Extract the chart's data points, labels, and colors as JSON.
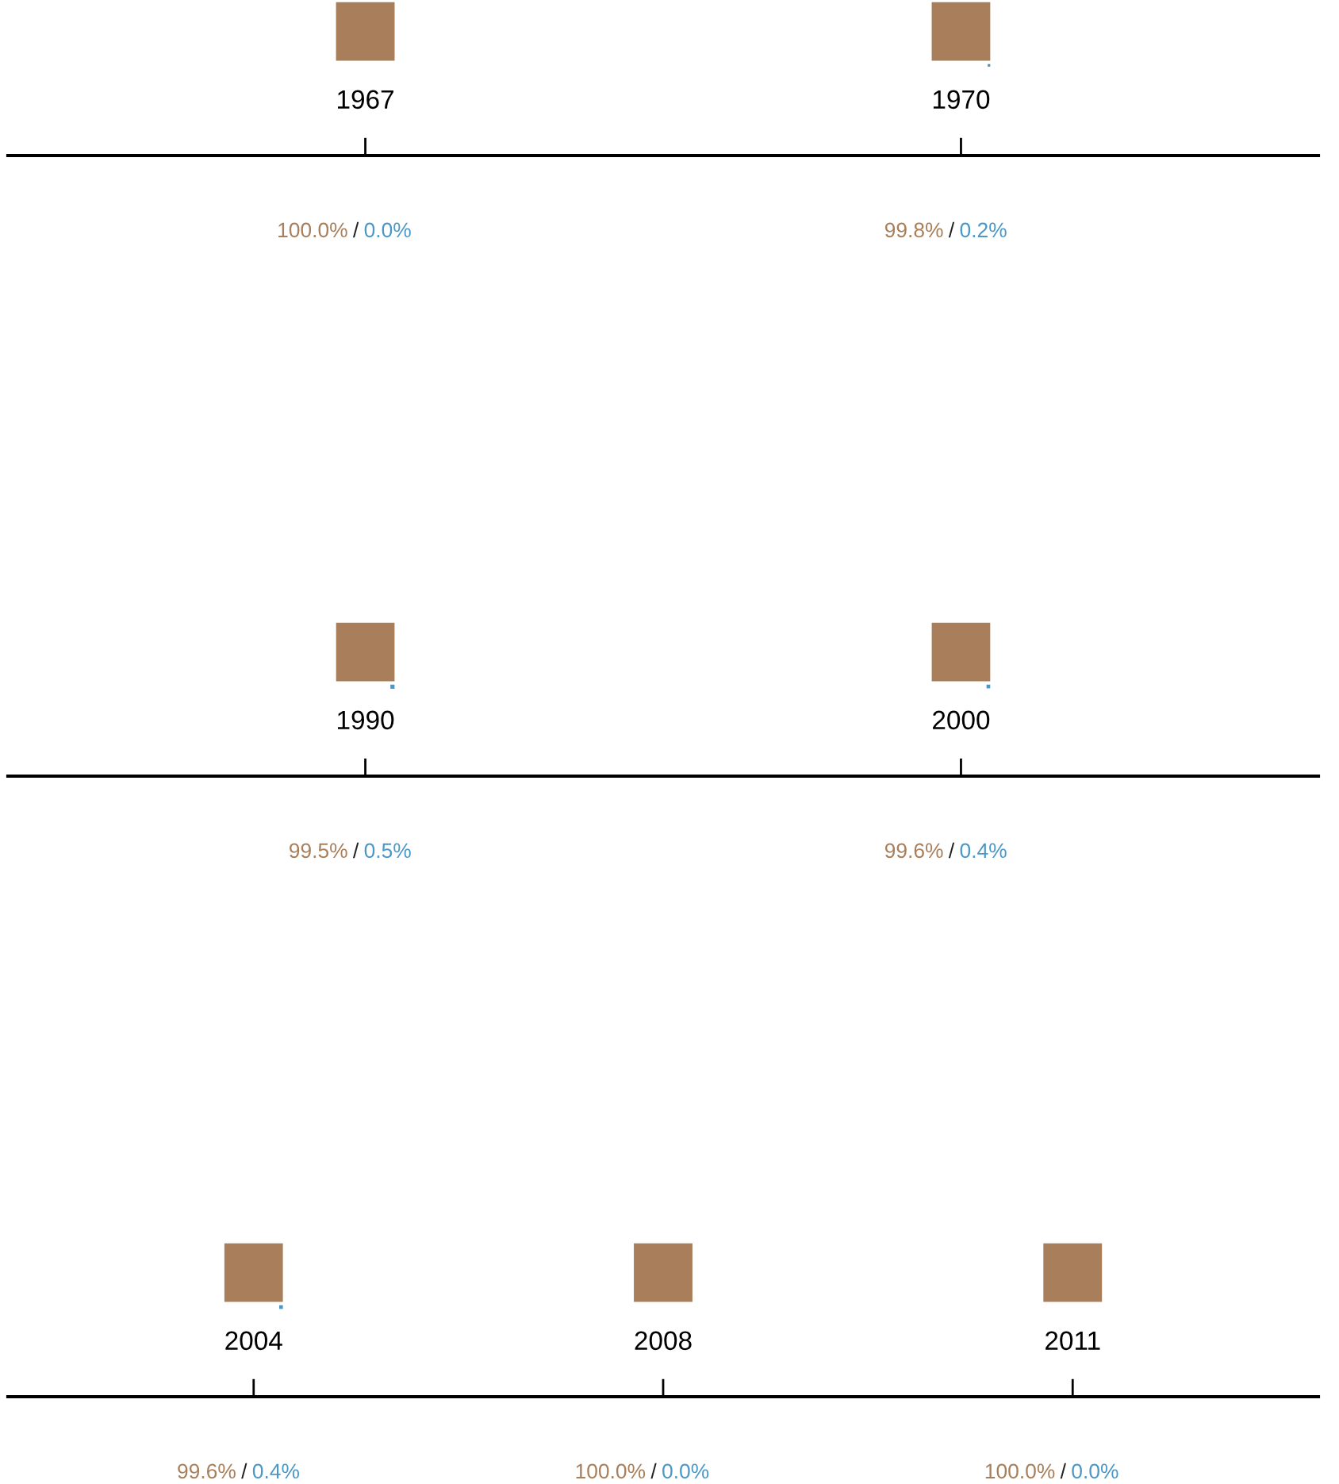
{
  "chart_data": [
    {
      "type": "other",
      "categories": [
        "1967",
        "1970"
      ],
      "series": [
        {
          "color": "#a87f5a",
          "values": [
            100.0,
            99.8
          ],
          "value_labels": [
            "100.0%",
            "99.8%"
          ]
        },
        {
          "color": "#4a98c8",
          "values": [
            0.0,
            0.2
          ],
          "value_labels": [
            "0.0%",
            "0.2%"
          ]
        }
      ],
      "annotations": [
        "/",
        "/"
      ]
    },
    {
      "type": "other",
      "categories": [
        "1990",
        "2000"
      ],
      "series": [
        {
          "color": "#a87f5a",
          "values": [
            99.5,
            99.6
          ],
          "value_labels": [
            "99.5%",
            "99.6%"
          ]
        },
        {
          "color": "#4a98c8",
          "values": [
            0.5,
            0.4
          ],
          "value_labels": [
            "0.5%",
            "0.4%"
          ]
        }
      ],
      "annotations": [
        "/",
        "/"
      ]
    },
    {
      "type": "other",
      "categories": [
        "2004",
        "2008",
        "2011"
      ],
      "series": [
        {
          "color": "#a87f5a",
          "values": [
            99.6,
            100.0,
            100.0
          ],
          "value_labels": [
            "99.6%",
            "100.0%",
            "100.0%"
          ]
        },
        {
          "color": "#4a98c8",
          "values": [
            0.4,
            0.0,
            0.0
          ],
          "value_labels": [
            "0.4%",
            "0.0%",
            "0.0%"
          ]
        }
      ],
      "annotations": [
        "/",
        "/",
        "/"
      ]
    }
  ]
}
